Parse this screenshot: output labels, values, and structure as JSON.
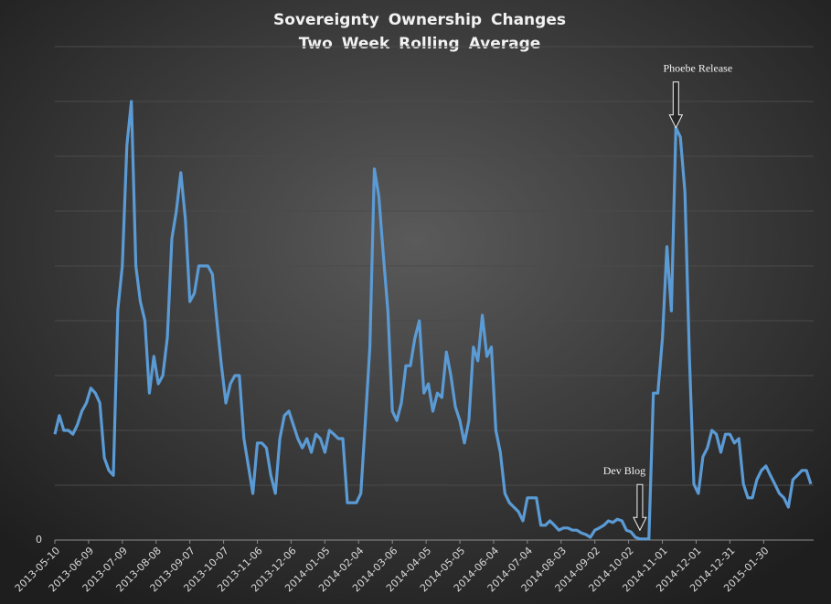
{
  "chart_data": {
    "type": "line",
    "title": "Sovereignty Ownership Changes",
    "subtitle": "Two Week Rolling Average",
    "x": [
      "2013-05-10",
      "2013-05-14",
      "2013-05-18",
      "2013-05-22",
      "2013-05-26",
      "2013-05-30",
      "2013-06-03",
      "2013-06-07",
      "2013-06-11",
      "2013-06-15",
      "2013-06-19",
      "2013-06-23",
      "2013-06-27",
      "2013-07-01",
      "2013-07-05",
      "2013-07-09",
      "2013-07-13",
      "2013-07-17",
      "2013-07-21",
      "2013-07-25",
      "2013-07-29",
      "2013-08-02",
      "2013-08-06",
      "2013-08-10",
      "2013-08-14",
      "2013-08-18",
      "2013-08-22",
      "2013-08-26",
      "2013-08-30",
      "2013-09-03",
      "2013-09-07",
      "2013-09-11",
      "2013-09-15",
      "2013-09-19",
      "2013-09-23",
      "2013-09-27",
      "2013-10-01",
      "2013-10-05",
      "2013-10-09",
      "2013-10-13",
      "2013-10-17",
      "2013-10-21",
      "2013-10-25",
      "2013-10-29",
      "2013-11-02",
      "2013-11-06",
      "2013-11-10",
      "2013-11-14",
      "2013-11-18",
      "2013-11-22",
      "2013-11-26",
      "2013-11-30",
      "2013-12-04",
      "2013-12-08",
      "2013-12-12",
      "2013-12-16",
      "2013-12-20",
      "2013-12-24",
      "2013-12-28",
      "2014-01-01",
      "2014-01-05",
      "2014-01-09",
      "2014-01-13",
      "2014-01-17",
      "2014-01-21",
      "2014-01-25",
      "2014-01-29",
      "2014-02-02",
      "2014-02-06",
      "2014-02-10",
      "2014-02-14",
      "2014-02-18",
      "2014-02-22",
      "2014-02-26",
      "2014-03-02",
      "2014-03-06",
      "2014-03-10",
      "2014-03-14",
      "2014-03-18",
      "2014-03-22",
      "2014-03-26",
      "2014-03-30",
      "2014-04-03",
      "2014-04-07",
      "2014-04-11",
      "2014-04-15",
      "2014-04-19",
      "2014-04-23",
      "2014-04-27",
      "2014-05-01",
      "2014-05-05",
      "2014-05-09",
      "2014-05-13",
      "2014-05-17",
      "2014-05-21",
      "2014-05-25",
      "2014-05-29",
      "2014-06-02",
      "2014-06-06",
      "2014-06-10",
      "2014-06-14",
      "2014-06-18",
      "2014-06-22",
      "2014-06-26",
      "2014-06-30",
      "2014-07-04",
      "2014-07-08",
      "2014-07-12",
      "2014-07-16",
      "2014-07-20",
      "2014-07-24",
      "2014-07-28",
      "2014-08-01",
      "2014-08-05",
      "2014-08-09",
      "2014-08-13",
      "2014-08-17",
      "2014-08-21",
      "2014-08-25",
      "2014-08-29",
      "2014-09-02",
      "2014-09-06",
      "2014-09-10",
      "2014-09-14",
      "2014-09-18",
      "2014-09-22",
      "2014-09-26",
      "2014-09-30",
      "2014-10-04",
      "2014-10-08",
      "2014-10-12",
      "2014-10-16",
      "2014-10-20",
      "2014-10-24",
      "2014-10-28",
      "2014-11-01",
      "2014-11-05",
      "2014-11-09",
      "2014-11-13",
      "2014-11-17",
      "2014-11-21",
      "2014-11-25",
      "2014-11-29",
      "2014-12-03",
      "2014-12-07",
      "2014-12-11",
      "2014-12-15",
      "2014-12-19",
      "2014-12-23",
      "2014-12-27",
      "2014-12-31",
      "2015-01-04",
      "2015-01-08",
      "2015-01-12",
      "2015-01-16",
      "2015-01-20",
      "2015-01-24",
      "2015-01-28",
      "2015-02-01",
      "2015-02-05",
      "2015-02-09",
      "2015-02-13",
      "2015-02-17",
      "2015-02-21",
      "2015-02-25",
      "2015-03-01",
      "2015-03-05",
      "2015-03-09",
      "2015-03-13"
    ],
    "series": [
      {
        "name": "Sovereignty Ownership Changes",
        "color": "#5b9bd5",
        "values": [
          1.93,
          2.27,
          2.0,
          2.0,
          1.93,
          2.1,
          2.35,
          2.5,
          2.77,
          2.68,
          2.5,
          1.5,
          1.27,
          1.18,
          4.2,
          5.0,
          7.2,
          8.0,
          5.0,
          4.35,
          4.0,
          2.68,
          3.35,
          2.85,
          3.0,
          3.7,
          5.5,
          6.0,
          6.7,
          5.85,
          4.35,
          4.5,
          5.0,
          5.0,
          5.0,
          4.85,
          4.0,
          3.2,
          2.5,
          2.85,
          3.0,
          3.0,
          1.85,
          1.35,
          0.85,
          1.77,
          1.77,
          1.68,
          1.18,
          0.85,
          1.85,
          2.27,
          2.35,
          2.1,
          1.85,
          1.68,
          1.85,
          1.6,
          1.93,
          1.85,
          1.6,
          2.0,
          1.93,
          1.85,
          1.85,
          0.68,
          0.68,
          0.68,
          0.85,
          2.18,
          3.52,
          6.77,
          6.27,
          5.18,
          4.18,
          2.35,
          2.18,
          2.5,
          3.18,
          3.18,
          3.68,
          4.0,
          2.68,
          2.85,
          2.35,
          2.68,
          2.6,
          3.43,
          3.0,
          2.43,
          2.18,
          1.77,
          2.18,
          3.52,
          3.27,
          4.1,
          3.35,
          3.52,
          2.0,
          1.6,
          0.85,
          0.68,
          0.6,
          0.52,
          0.35,
          0.77,
          0.77,
          0.77,
          0.27,
          0.27,
          0.35,
          0.27,
          0.18,
          0.22,
          0.22,
          0.18,
          0.18,
          0.13,
          0.1,
          0.05,
          0.18,
          0.22,
          0.27,
          0.35,
          0.32,
          0.38,
          0.35,
          0.18,
          0.15,
          0.05,
          0.02,
          0.02,
          0.02,
          2.68,
          2.68,
          3.68,
          5.35,
          4.18,
          7.52,
          7.35,
          6.35,
          3.35,
          1.02,
          0.85,
          1.52,
          1.68,
          2.0,
          1.93,
          1.6,
          1.93,
          1.93,
          1.77,
          1.85,
          1.02,
          0.77,
          0.77,
          1.1,
          1.27,
          1.35,
          1.18,
          1.02,
          0.85,
          0.77,
          0.6,
          1.1,
          1.18,
          1.27,
          1.27,
          1.02
        ]
      }
    ],
    "xlim": [
      "2013-05-10",
      "2015-03-13"
    ],
    "xticks": [
      "2013-05-10",
      "2013-06-09",
      "2013-07-09",
      "2013-08-08",
      "2013-09-07",
      "2013-10-07",
      "2013-11-06",
      "2013-12-06",
      "2014-01-05",
      "2014-02-04",
      "2014-03-06",
      "2014-04-05",
      "2014-05-05",
      "2014-06-04",
      "2014-07-04",
      "2014-08-03",
      "2014-09-02",
      "2014-10-02",
      "2014-11-01",
      "2014-12-01",
      "2014-12-31",
      "2015-01-30"
    ],
    "ylim": [
      0,
      9
    ],
    "yticks": [
      0
    ],
    "grid": true,
    "ygrid": [
      0,
      1,
      2,
      3,
      4,
      5,
      6,
      7,
      8,
      9
    ],
    "annotations": [
      {
        "text": "Phoebe Release",
        "x": "2014-11-13",
        "y": 7.52
      },
      {
        "text": "Dev Blog",
        "x": "2014-10-12",
        "y": 0.18
      }
    ]
  }
}
